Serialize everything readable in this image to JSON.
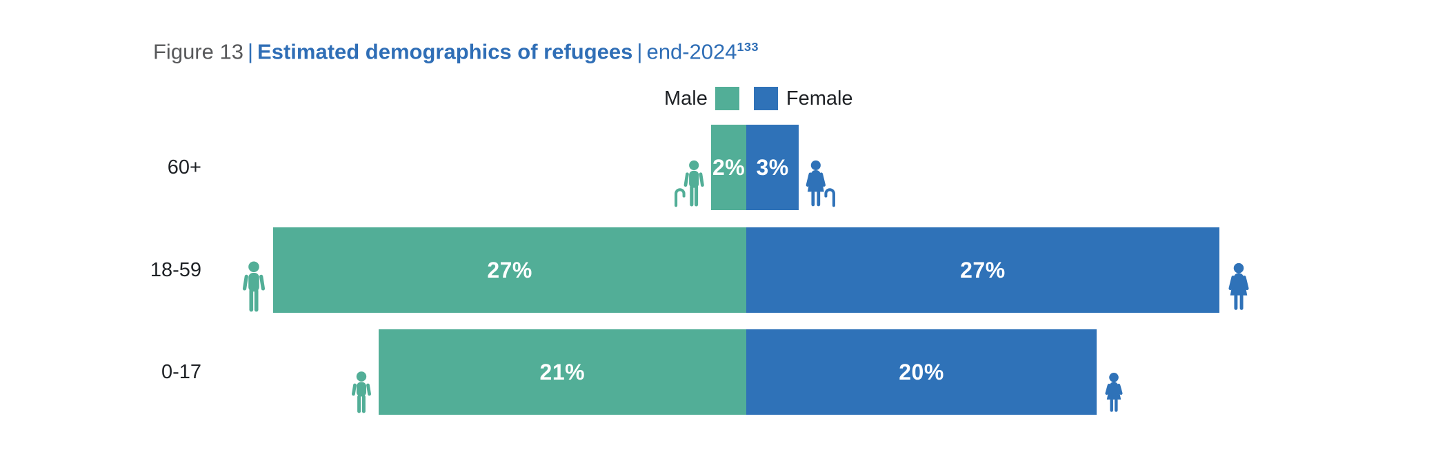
{
  "title": {
    "figure_label": "Figure 13",
    "separator": "|",
    "main": "Estimated demographics of refugees",
    "suffix": "end-2024",
    "footnote_ref": "133"
  },
  "legend": {
    "male_label": "Male",
    "female_label": "Female"
  },
  "colors": {
    "male": "#52AE97",
    "female": "#2F72B8",
    "title_gray": "#58595B",
    "title_blue": "#2F6EB6",
    "text_black": "#1E2125",
    "value_label": "#FFFFFF",
    "background": "#FFFFFF"
  },
  "chart_data": {
    "type": "bar",
    "subtype": "diverging-horizontal-pyramid",
    "title": "Estimated demographics of refugees | end-2024",
    "unit": "%",
    "categories": [
      "60+",
      "18-59",
      "0-17"
    ],
    "series": [
      {
        "name": "Male",
        "side": "left",
        "color": "#52AE97",
        "values": [
          2,
          27,
          21
        ]
      },
      {
        "name": "Female",
        "side": "right",
        "color": "#2F72B8",
        "values": [
          3,
          27,
          20
        ]
      }
    ],
    "rows": [
      {
        "label": "60+",
        "male_value": 2,
        "male_label": "2%",
        "female_value": 3,
        "female_label": "3%",
        "male_icon": "elderly-man-with-cane",
        "female_icon": "elderly-woman-with-cane"
      },
      {
        "label": "18-59",
        "male_value": 27,
        "male_label": "27%",
        "female_value": 27,
        "female_label": "27%",
        "male_icon": "adult-man",
        "female_icon": "adult-woman"
      },
      {
        "label": "0-17",
        "male_value": 21,
        "male_label": "21%",
        "female_value": 20,
        "female_label": "20%",
        "male_icon": "boy-child",
        "female_icon": "girl-child"
      }
    ],
    "value_labels_position": "inside-center",
    "legend_position": "top-center",
    "axes": "none",
    "grid": false
  }
}
